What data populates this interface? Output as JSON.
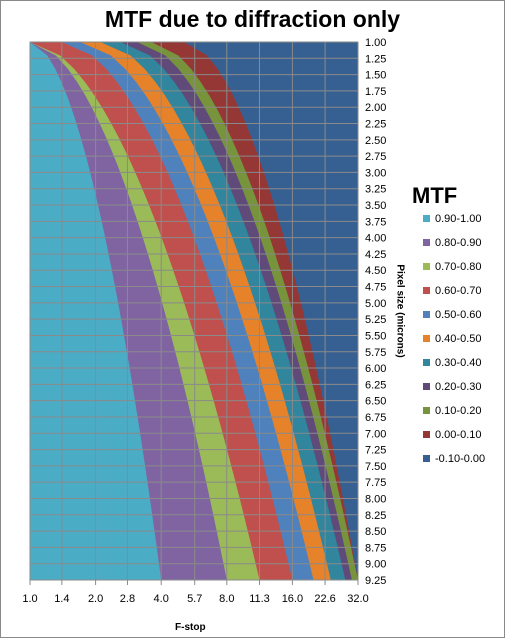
{
  "chart_data": {
    "type": "heatmap",
    "title": "MTF due to diffraction only",
    "xlabel": "F-stop",
    "ylabel": "Pixel size (microns)",
    "x_ticks": [
      "1.0",
      "1.4",
      "2.0",
      "2.8",
      "4.0",
      "5.7",
      "8.0",
      "11.3",
      "16.0",
      "22.6",
      "32.0"
    ],
    "y_ticks": [
      "1.00",
      "1.25",
      "1.50",
      "1.75",
      "2.00",
      "2.25",
      "2.50",
      "2.75",
      "3.00",
      "3.25",
      "3.50",
      "3.75",
      "4.00",
      "4.25",
      "4.50",
      "4.75",
      "5.00",
      "5.25",
      "5.50",
      "5.75",
      "6.00",
      "6.25",
      "6.50",
      "6.75",
      "7.00",
      "7.25",
      "7.50",
      "7.75",
      "8.00",
      "8.25",
      "8.50",
      "8.75",
      "9.00",
      "9.25"
    ],
    "ylim": [
      1.0,
      9.25
    ],
    "y_axis_position": "right",
    "y_reversed": true,
    "grid": true,
    "legend_position": "right",
    "legend_title": "MTF",
    "bands": [
      {
        "label": "0.90-1.00",
        "color": "#4bacc6"
      },
      {
        "label": "0.80-0.90",
        "color": "#8064a2"
      },
      {
        "label": "0.70-0.80",
        "color": "#9bbb59"
      },
      {
        "label": "0.60-0.70",
        "color": "#c0504d"
      },
      {
        "label": "0.50-0.60",
        "color": "#4f81bd"
      },
      {
        "label": "0.40-0.50",
        "color": "#e6832a"
      },
      {
        "label": "0.30-0.40",
        "color": "#31859c"
      },
      {
        "label": "0.20-0.30",
        "color": "#5f4a7a"
      },
      {
        "label": "0.10-0.20",
        "color": "#77933c"
      },
      {
        "label": "0.00-0.10",
        "color": "#953735"
      },
      {
        "label": "-0.10-0.00",
        "color": "#376092"
      }
    ],
    "boundaries": [
      {
        "mtf": 0.9,
        "top_at_y1": 1.0,
        "bottom_at_y925": 4.0
      },
      {
        "mtf": 0.8,
        "top_at_y1": 1.0,
        "bottom_at_y925": 8.0
      },
      {
        "mtf": 0.7,
        "top_at_y1": 1.0,
        "bottom_at_y925": 11.3
      },
      {
        "mtf": 0.6,
        "top_at_y1": 1.4,
        "bottom_at_y925": 16.0
      },
      {
        "mtf": 0.5,
        "top_at_y1": 1.7,
        "bottom_at_y925": 20.0
      },
      {
        "mtf": 0.4,
        "top_at_y1": 2.1,
        "bottom_at_y925": 24.0
      },
      {
        "mtf": 0.3,
        "top_at_y1": 2.6,
        "bottom_at_y925": 28.0
      },
      {
        "mtf": 0.2,
        "top_at_y1": 3.1,
        "bottom_at_y925": 30.0
      },
      {
        "mtf": 0.1,
        "top_at_y1": 3.6,
        "bottom_at_y925": 32.0
      },
      {
        "mtf": 0.0,
        "top_at_y1": 5.1,
        "bottom_at_y925": 32.0
      }
    ]
  }
}
